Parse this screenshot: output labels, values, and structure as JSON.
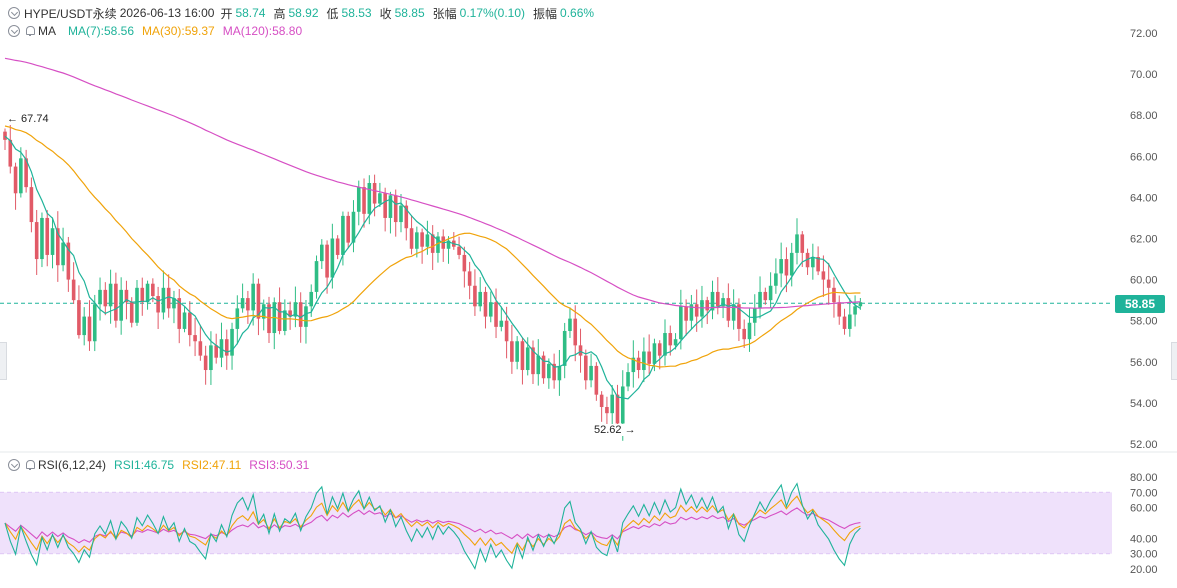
{
  "header": {
    "pair": "HYPE/USDT永续",
    "datetime": "2026-06-13 16:00",
    "open_label": "开",
    "open": "58.74",
    "high_label": "高",
    "high": "58.92",
    "low_label": "低",
    "low": "58.53",
    "close_label": "收",
    "close": "58.85",
    "change_label": "张幅",
    "change": "0.17%(0.10)",
    "amp_label": "振幅",
    "amp": "0.66%"
  },
  "ma_row": {
    "name": "MA",
    "ma7": "MA(7):58.56",
    "ma30": "MA(30):59.37",
    "ma120": "MA(120):58.80"
  },
  "rsi_row": {
    "name": "RSI(6,12,24)",
    "rsi1": "RSI1:46.75",
    "rsi2": "RSI2:47.11",
    "rsi3": "RSI3:50.31"
  },
  "annotations": {
    "high_marker": "← 67.74",
    "low_marker": "52.62 →"
  },
  "last_price_tag": "58.85",
  "colors": {
    "up": "#2ebd85",
    "down": "#e15a67",
    "ma7": "#1fb39a",
    "ma30": "#f0a30a",
    "ma120": "#d64fc4",
    "rsi_band": "#efe1fb",
    "axis_text": "#555555"
  },
  "chart_data": [
    {
      "type": "candlestick",
      "title": "HYPE/USDT永续",
      "ylim": [
        51,
        73
      ],
      "y_ticks": [
        "72.00",
        "70.00",
        "68.00",
        "66.00",
        "64.00",
        "62.00",
        "60.00",
        "58.00",
        "56.00",
        "54.00",
        "52.00"
      ],
      "last_price": 58.85,
      "high_mark": 67.74,
      "low_mark": 52.62,
      "closes": [
        66.8,
        65.5,
        64.2,
        65.9,
        64.5,
        62.8,
        61.0,
        63.0,
        61.2,
        62.5,
        60.7,
        61.8,
        60.0,
        59.0,
        57.3,
        58.2,
        57.0,
        58.8,
        59.5,
        58.7,
        59.8,
        58.0,
        59.5,
        58.9,
        57.9,
        59.6,
        58.9,
        59.8,
        59.2,
        58.4,
        59.6,
        58.6,
        59.1,
        57.6,
        58.4,
        57.3,
        57.0,
        56.3,
        55.6,
        56.8,
        56.2,
        57.1,
        56.3,
        57.6,
        58.6,
        59.1,
        58.5,
        59.8,
        58.1,
        58.8,
        57.4,
        58.9,
        57.5,
        58.5,
        58.2,
        58.9,
        57.7,
        58.7,
        59.4,
        60.9,
        61.7,
        60.1,
        62.0,
        61.2,
        63.1,
        61.8,
        63.3,
        64.5,
        63.2,
        64.7,
        63.7,
        64.2,
        63.0,
        64.1,
        62.8,
        63.6,
        62.5,
        61.5,
        62.3,
        61.6,
        62.2,
        61.3,
        62.1,
        61.5,
        61.9,
        61.6,
        61.2,
        60.4,
        59.7,
        58.7,
        59.4,
        58.2,
        58.9,
        57.7,
        58.0,
        57.0,
        56.0,
        57.0,
        55.6,
        56.7,
        55.4,
        56.3,
        55.2,
        55.9,
        55.1,
        55.8,
        57.5,
        58.1,
        56.8,
        56.3,
        55.1,
        55.8,
        54.4,
        53.8,
        53.5,
        54.4,
        53.0,
        54.8,
        55.5,
        56.2,
        55.6,
        56.5,
        55.9,
        56.9,
        56.3,
        57.4,
        56.8,
        57.1,
        58.7,
        58.0,
        58.8,
        58.2,
        59.0,
        58.5,
        59.4,
        58.7,
        59.1,
        58.0,
        58.8,
        57.6,
        57.1,
        57.9,
        58.6,
        59.4,
        59.0,
        59.7,
        60.3,
        61.0,
        60.2,
        61.3,
        62.2,
        61.3,
        60.6,
        61.1,
        60.4,
        60.0,
        59.6,
        58.9,
        58.2,
        57.6,
        58.3,
        58.7,
        58.9
      ],
      "series": [
        {
          "name": "MA(7)",
          "last": 58.56
        },
        {
          "name": "MA(30)",
          "last": 59.37
        },
        {
          "name": "MA(120)",
          "last": 58.8
        }
      ]
    },
    {
      "type": "line",
      "title": "RSI(6,12,24)",
      "ylim": [
        20,
        80
      ],
      "y_ticks": [
        "80.00",
        "70.00",
        "60.00",
        "40.00",
        "30.00",
        "20.00"
      ],
      "band": [
        30,
        70
      ],
      "series": [
        {
          "name": "RSI1",
          "last": 46.75
        },
        {
          "name": "RSI2",
          "last": 47.11
        },
        {
          "name": "RSI3",
          "last": 50.31
        }
      ]
    }
  ]
}
